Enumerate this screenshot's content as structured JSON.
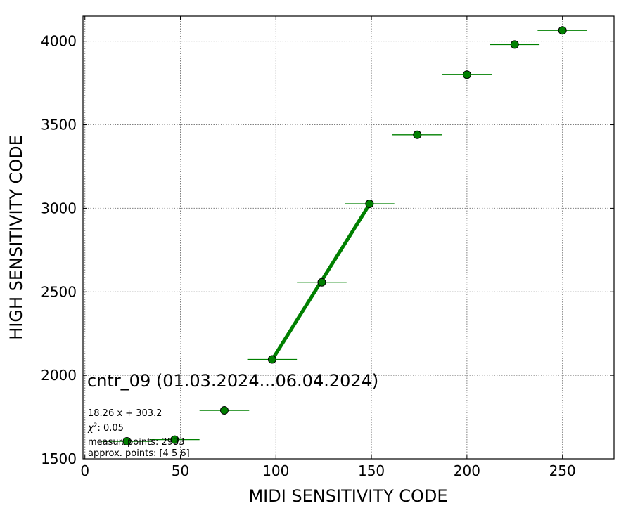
{
  "chart_data": {
    "type": "scatter",
    "xlabel": "MIDI SENSITIVITY CODE",
    "ylabel": "HIGH SENSITIVITY CODE",
    "xlim": [
      -1,
      277
    ],
    "ylim": [
      1500,
      4150
    ],
    "xticks": [
      0,
      50,
      100,
      150,
      200,
      250
    ],
    "yticks": [
      1500,
      2000,
      2500,
      3000,
      3500,
      4000
    ],
    "grid": true,
    "color": "#008000",
    "points": [
      {
        "x": 22,
        "y": 1605,
        "xerr": 13
      },
      {
        "x": 47,
        "y": 1615,
        "xerr": 13
      },
      {
        "x": 73,
        "y": 1790,
        "xerr": 13
      },
      {
        "x": 98,
        "y": 2095,
        "xerr": 13
      },
      {
        "x": 124,
        "y": 2557,
        "xerr": 13
      },
      {
        "x": 149,
        "y": 3027,
        "xerr": 13
      },
      {
        "x": 174,
        "y": 3440,
        "xerr": 13
      },
      {
        "x": 200,
        "y": 3800,
        "xerr": 13
      },
      {
        "x": 225,
        "y": 3980,
        "xerr": 13
      },
      {
        "x": 250,
        "y": 4065,
        "xerr": 13
      }
    ],
    "fit": {
      "slope": 18.26,
      "intercept": 303.2,
      "x_range": [
        98,
        149
      ]
    },
    "annotations": {
      "title": "cntr_09 (01.03.2024...06.04.2024)",
      "equation": "18.26 x + 303.2",
      "chi2_label": "χ",
      "chi2_sup": "2",
      "chi2_value": ": 0.05",
      "measur": "measur. points: 2933",
      "approx": "approx. points: [4 5 6]"
    }
  }
}
